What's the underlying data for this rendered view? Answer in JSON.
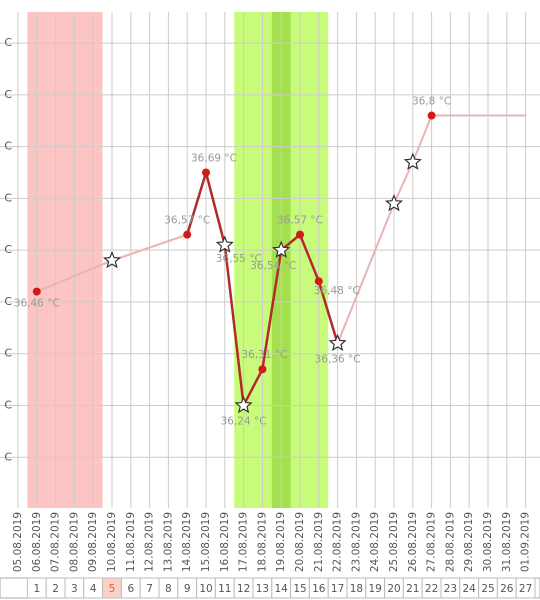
{
  "chart_data": {
    "type": "line",
    "categories": [
      "05.08.2019",
      "06.08.2019",
      "07.08.2019",
      "08.08.2019",
      "09.08.2019",
      "10.08.2019",
      "11.08.2019",
      "12.08.2019",
      "13.08.2019",
      "14.08.2019",
      "15.08.2019",
      "16.08.2019",
      "17.08.2019",
      "18.08.2019",
      "19.08.2019",
      "20.08.2019",
      "21.08.2019",
      "22.08.2019",
      "23.08.2019",
      "24.08.2019",
      "25.08.2019",
      "26.08.2019",
      "27.08.2019",
      "28.08.2019",
      "29.08.2019",
      "30.08.2019",
      "31.08.2019",
      "01.09.2019"
    ],
    "values": [
      null,
      36.46,
      null,
      null,
      null,
      36.52,
      null,
      null,
      null,
      36.57,
      36.69,
      36.55,
      36.24,
      36.31,
      36.54,
      36.57,
      36.48,
      36.36,
      null,
      null,
      36.63,
      36.71,
      36.8,
      36.8,
      36.8,
      36.8,
      36.8,
      36.8
    ],
    "value_labels": [
      null,
      "36,46 °C",
      null,
      null,
      null,
      null,
      null,
      null,
      null,
      "36,57 °C",
      "36,69 °C",
      "36,55 °C",
      "36,24 °C",
      "36,31 °C",
      "36,54 °C",
      "36,57 °C",
      "36,48 °C",
      "36,36 °C",
      null,
      null,
      null,
      null,
      "36,8 °C",
      null,
      null,
      null,
      null,
      null
    ],
    "markers": [
      null,
      "circle",
      null,
      null,
      null,
      "star",
      null,
      null,
      null,
      "circle",
      "circle",
      "star",
      "star",
      "circle",
      "star",
      "circle",
      "circle",
      "star",
      null,
      null,
      "star",
      "star",
      "circle",
      null,
      null,
      null,
      null,
      null
    ],
    "segment_styles": [
      "light",
      "light",
      "dark",
      "dark",
      "dark",
      "dark",
      "dark",
      "dark",
      "dark",
      "dark",
      "light",
      "light",
      "light",
      "light",
      "light",
      "light",
      "light",
      "light"
    ],
    "colors": {
      "dark": "#b22a2a",
      "light": "#e8b4b4",
      "point": "#d11a1a"
    },
    "bands": [
      {
        "from": "06.08.2019",
        "to": "09.08.2019",
        "color": "#fdc4c4"
      },
      {
        "from": "17.08.2019",
        "to": "21.08.2019",
        "color": "#c9fb7a"
      },
      {
        "from": "19.08.2019",
        "to": "19.08.2019",
        "color": "#a4e04e"
      }
    ],
    "ylim": [
      36.042,
      37.0
    ],
    "yticks": [
      {
        "value": 36.14,
        "label": "C"
      },
      {
        "value": 36.24,
        "label": "C"
      },
      {
        "value": 36.34,
        "label": "C"
      },
      {
        "value": 36.44,
        "label": "C"
      },
      {
        "value": 36.54,
        "label": "C"
      },
      {
        "value": 36.64,
        "label": "C"
      },
      {
        "value": 36.74,
        "label": "C"
      },
      {
        "value": 36.84,
        "label": "C"
      },
      {
        "value": 36.94,
        "label": "C"
      }
    ],
    "grid": true,
    "cycle_days": [
      "1",
      "2",
      "3",
      "4",
      "5",
      "6",
      "7",
      "8",
      "9",
      "10",
      "11",
      "12",
      "13",
      "14",
      "15",
      "16",
      "17",
      "18",
      "19",
      "20",
      "21",
      "22",
      "23",
      "24",
      "25",
      "26",
      "27"
    ],
    "highlight_day": "5"
  }
}
